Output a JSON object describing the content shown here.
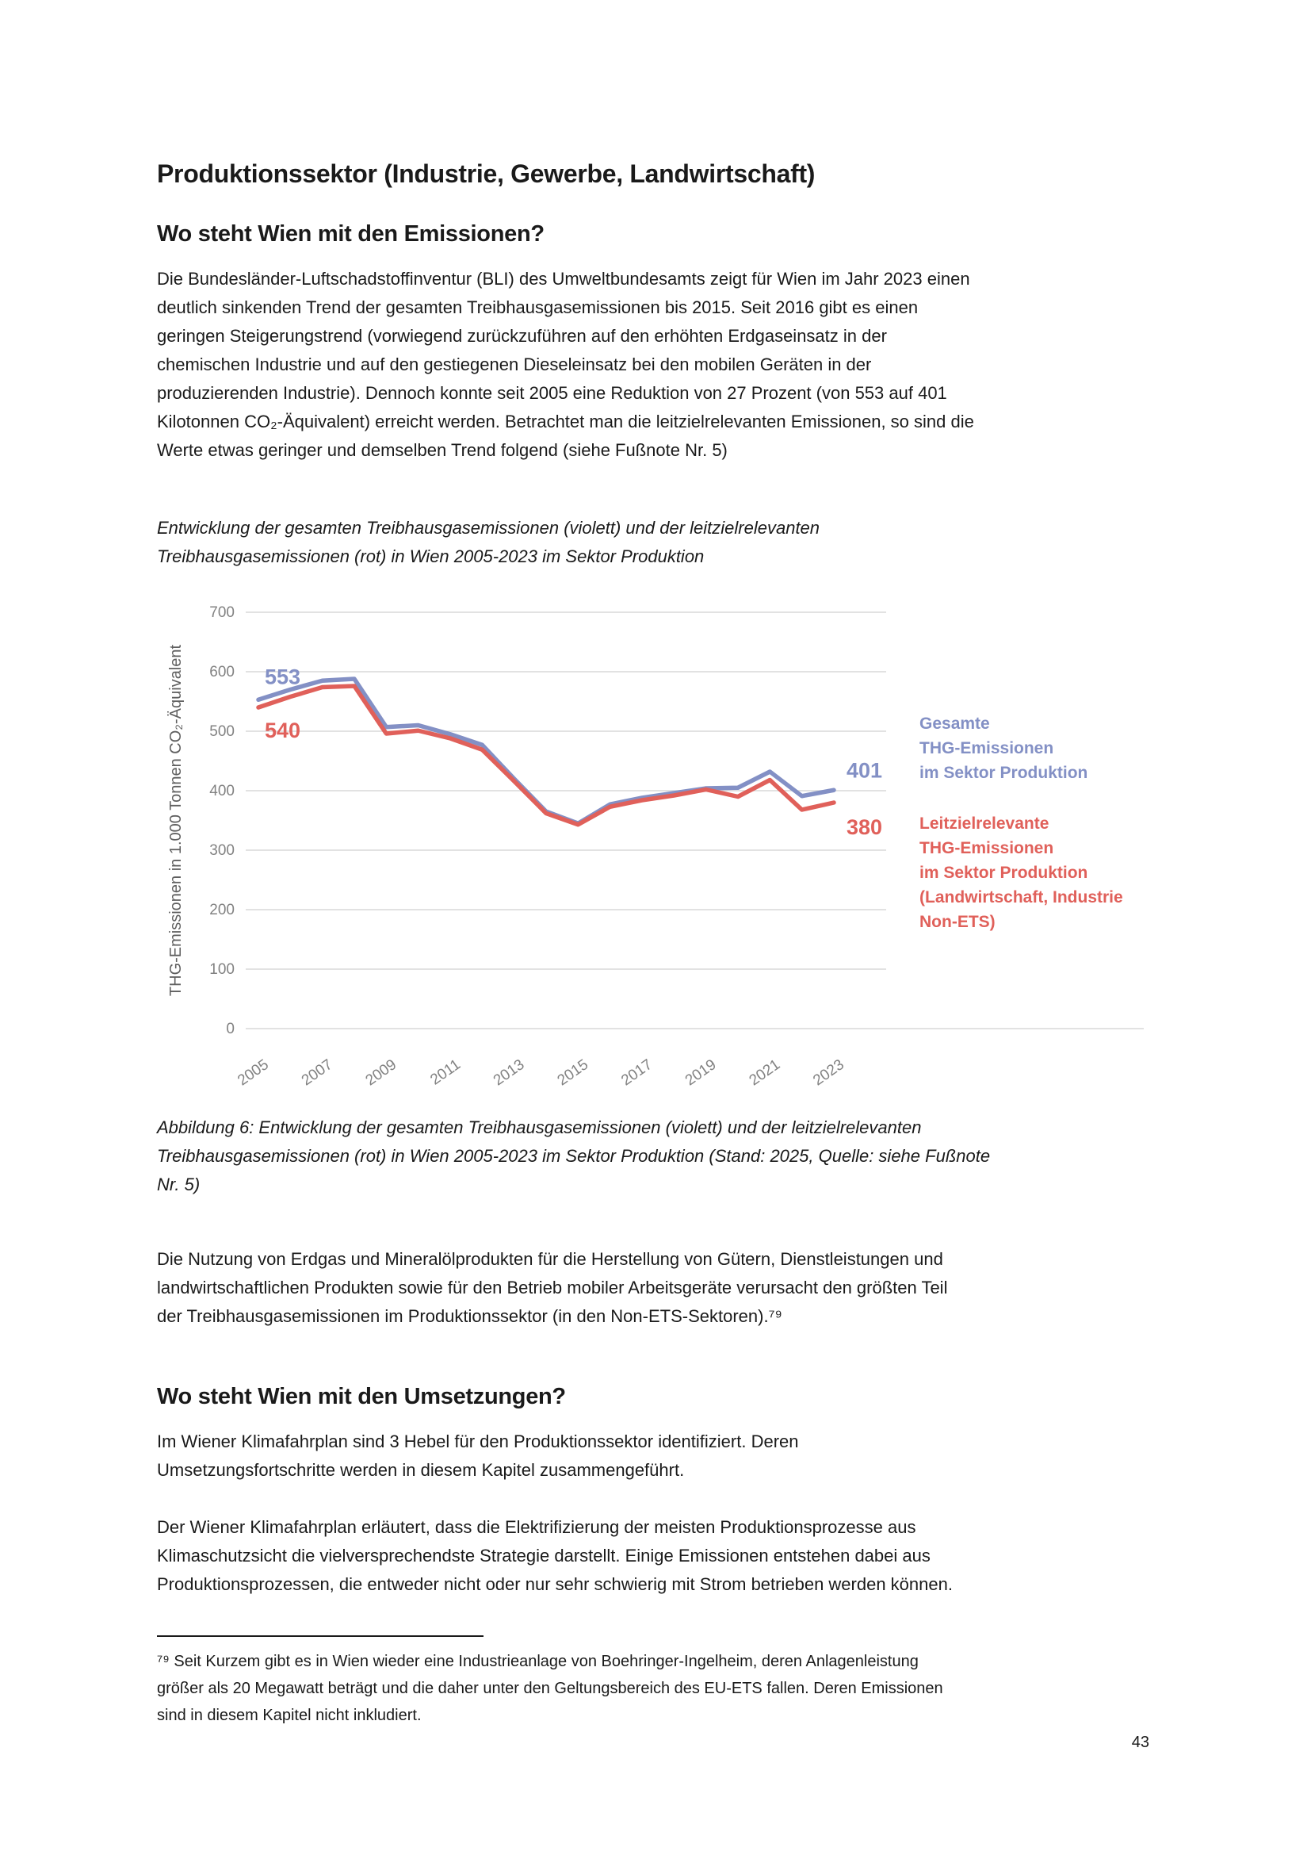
{
  "page": {
    "title": "Produktionssektor (Industrie, Gewerbe, Landwirtschaft)",
    "number": "43"
  },
  "sections": {
    "emissions": {
      "heading": "Wo steht Wien mit den Emissionen?",
      "para1": "Die Bundesländer-Luftschadstoffinventur (BLI) des Umweltbundesamts zeigt für Wien im Jahr 2023 einen\ndeutlich sinkenden Trend der gesamten Treibhausgasemissionen bis 2015. Seit 2016 gibt es einen\ngeringen Steigerungstrend (vorwiegend zurückzuführen auf den erhöhten Erdgaseinsatz in der\nchemischen Industrie und auf den gestiegenen Dieseleinsatz bei den mobilen Geräten in der\nproduzierenden Industrie). Dennoch konnte seit 2005 eine Reduktion von 27 Prozent (von 553 auf 401\nKilotonnen CO₂-Äquivalent) erreicht werden. Betrachtet man die leitzielrelevanten Emissionen, so sind die\nWerte etwas geringer und demselben Trend folgend (siehe Fußnote Nr. 5)",
      "chart_caption": "Entwicklung der gesamten Treibhausgasemissionen (violett) und der leitzielrelevanten\nTreibhausgasemissionen (rot) in Wien 2005-2023 im Sektor Produktion",
      "figure_caption": "Abbildung 6: Entwicklung der gesamten Treibhausgasemissionen (violett) und der leitzielrelevanten\nTreibhausgasemissionen (rot) in Wien 2005-2023 im Sektor Produktion (Stand: 2025, Quelle: siehe Fußnote\nNr. 5)",
      "para2": "Die Nutzung von Erdgas und Mineralölprodukten für die Herstellung von Gütern, Dienstleistungen und\nlandwirtschaftlichen Produkten sowie für den Betrieb mobiler Arbeitsgeräte verursacht den größten Teil\nder Treibhausgasemissionen im Produktionssektor (in den Non-ETS-Sektoren).⁷⁹"
    },
    "umsetzungen": {
      "heading": "Wo steht Wien mit den Umsetzungen?",
      "para1": "Im Wiener Klimafahrplan sind 3 Hebel für den Produktionssektor identifiziert. Deren\nUmsetzungsfortschritte werden in diesem Kapitel zusammengeführt.",
      "para2": "Der Wiener Klimafahrplan erläutert, dass die Elektrifizierung der meisten Produktionsprozesse aus\nKlimaschutzsicht die vielversprechendste Strategie darstellt. Einige Emissionen entstehen dabei aus\nProduktionsprozessen, die entweder nicht oder nur sehr schwierig mit Strom betrieben werden können."
    }
  },
  "footnote": {
    "text": "⁷⁹ Seit Kurzem gibt es in Wien wieder eine Industrieanlage von Boehringer-Ingelheim, deren Anlagenleistung\ngrößer als 20 Megawatt beträgt und die daher unter den Geltungsbereich des EU-ETS fallen. Deren Emissionen\nsind in diesem Kapitel nicht inkludiert."
  },
  "chart_data": {
    "type": "line",
    "title": "",
    "xlabel": "",
    "ylabel": "THG-Emissionen in 1.000 Tonnen CO₂-Äquivalent",
    "ylim": [
      0,
      700
    ],
    "yticks": [
      0,
      100,
      200,
      300,
      400,
      500,
      600,
      700
    ],
    "x": [
      2005,
      2006,
      2007,
      2008,
      2009,
      2010,
      2011,
      2012,
      2013,
      2014,
      2015,
      2016,
      2017,
      2018,
      2019,
      2020,
      2021,
      2022,
      2023
    ],
    "xticks": [
      2005,
      2007,
      2009,
      2011,
      2013,
      2015,
      2017,
      2019,
      2021,
      2023
    ],
    "grid": true,
    "grid_color": "#d9d9d9",
    "legend_position": "right",
    "series": [
      {
        "name": "Gesamte THG-Emissionen im Sektor Produktion",
        "legend_label": "Gesamte\nTHG-Emissionen\nim Sektor Produktion",
        "color": "#8390c5",
        "first_value": 553,
        "last_value": 401,
        "values": [
          553,
          570,
          585,
          588,
          507,
          510,
          495,
          477,
          420,
          365,
          345,
          377,
          388,
          396,
          404,
          405,
          432,
          391,
          401
        ]
      },
      {
        "name": "Leitzielrelevante THG-Emissionen im Sektor Produktion (Landwirtschaft, Industrie Non-ETS)",
        "legend_label": "Leitzielrelevante\nTHG-Emissionen\nim Sektor Produktion\n(Landwirtschaft, Industrie\nNon-ETS)",
        "color": "#e0605a",
        "first_value": 540,
        "last_value": 380,
        "values": [
          540,
          558,
          574,
          576,
          496,
          501,
          488,
          469,
          416,
          362,
          343,
          373,
          384,
          392,
          402,
          390,
          418,
          368,
          380
        ]
      }
    ]
  }
}
